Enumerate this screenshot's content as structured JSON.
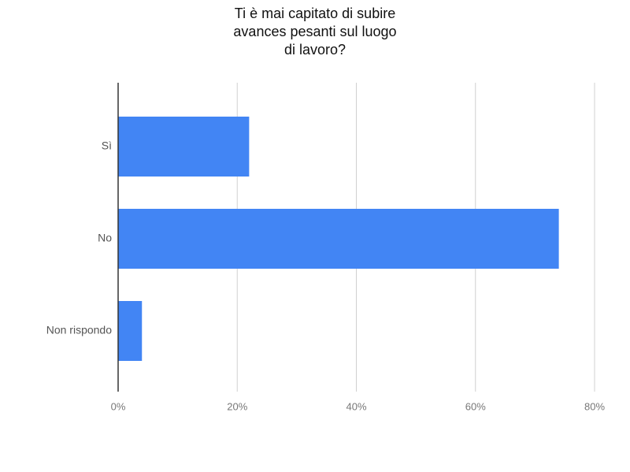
{
  "chart_data": {
    "type": "bar",
    "orientation": "horizontal",
    "title": [
      "Ti è mai capitato di subire",
      "avances pesanti sul luogo",
      "di lavoro?"
    ],
    "categories": [
      "Sì",
      "No",
      "Non rispondo"
    ],
    "values": [
      22,
      74,
      4
    ],
    "color": "#4285f4",
    "xlim": [
      0,
      80
    ],
    "xticks": [
      {
        "value": 0,
        "label": "0%"
      },
      {
        "value": 20,
        "label": "20%"
      },
      {
        "value": 40,
        "label": "40%"
      },
      {
        "value": 60,
        "label": "60%"
      },
      {
        "value": 80,
        "label": "80%"
      }
    ],
    "grid": true
  }
}
